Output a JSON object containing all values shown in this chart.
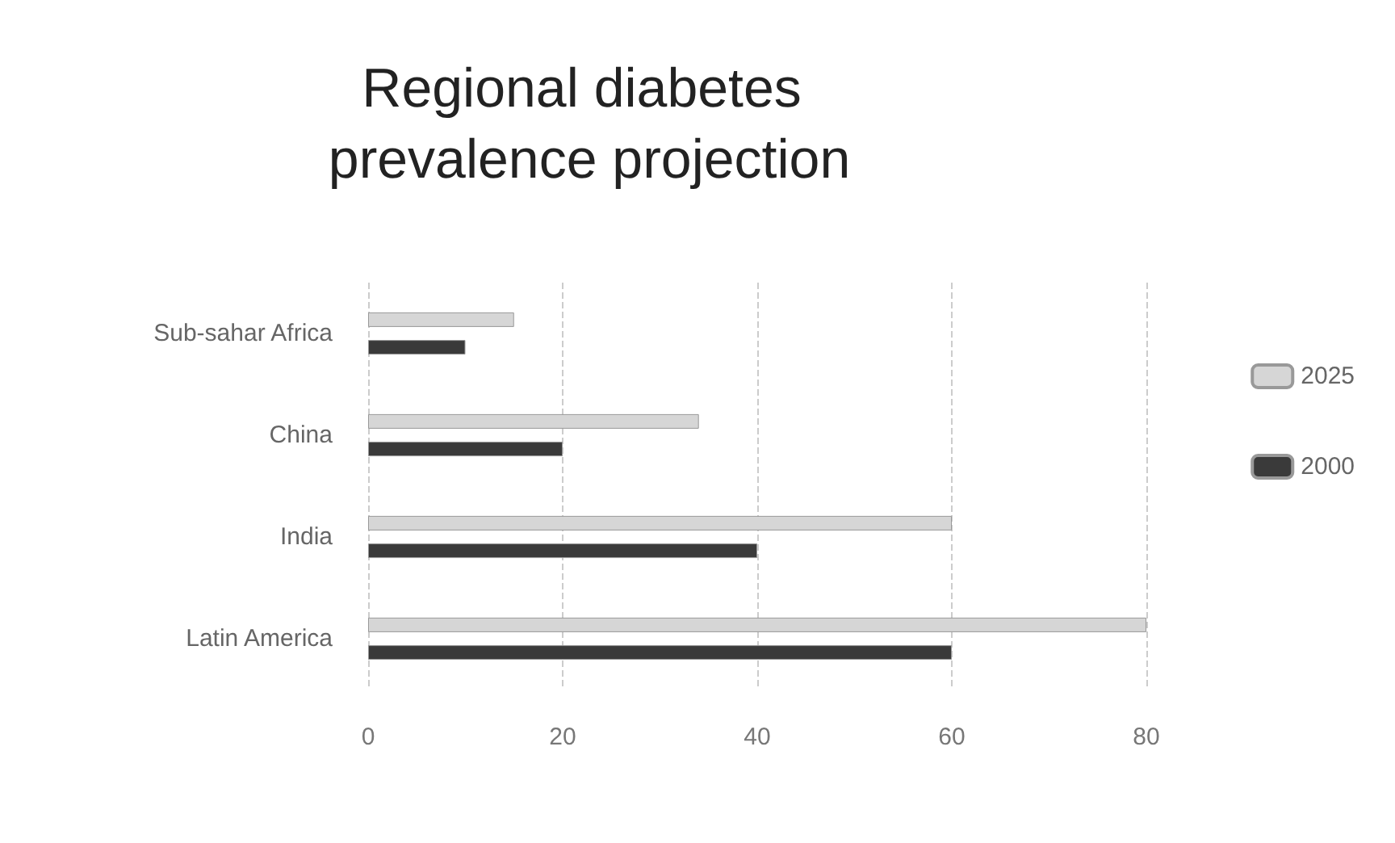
{
  "chart_data": {
    "type": "bar",
    "orientation": "horizontal",
    "title": "Regional diabetes prevalence projection",
    "categories": [
      "Sub-sahar Africa",
      "China",
      "India",
      "Latin America"
    ],
    "series": [
      {
        "name": "2025",
        "color": "#d6d6d6",
        "values": [
          15,
          34,
          60,
          80
        ]
      },
      {
        "name": "2000",
        "color": "#3a3a3a",
        "values": [
          10,
          20,
          40,
          60
        ]
      }
    ],
    "xlim": [
      0,
      80
    ],
    "xticks": [
      0,
      20,
      40,
      60,
      80
    ],
    "grid": "x",
    "legend": "right"
  }
}
